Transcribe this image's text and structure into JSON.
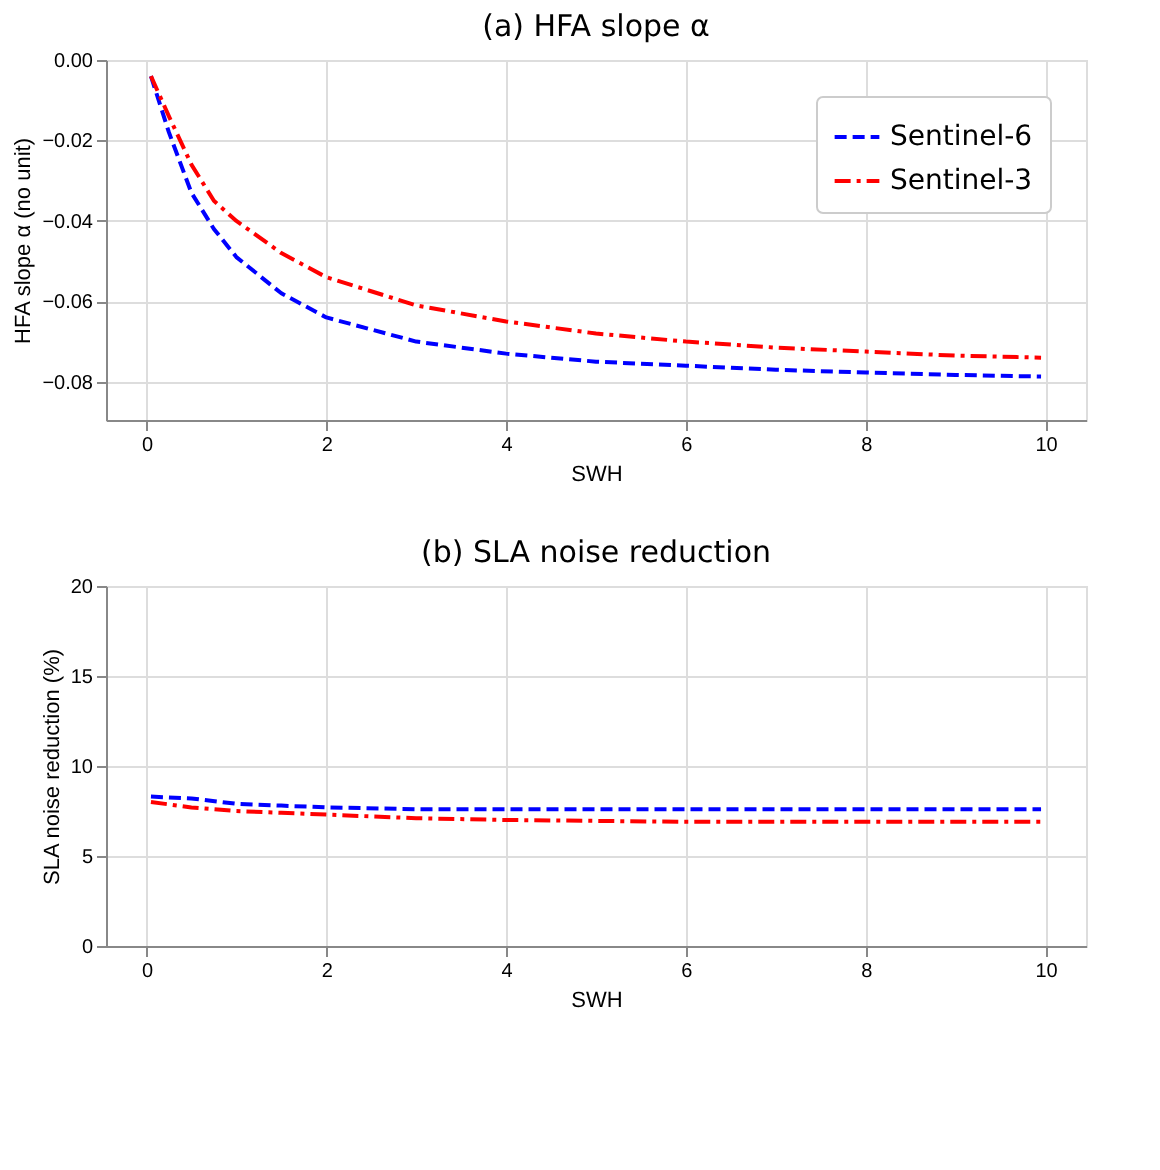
{
  "chart_data": [
    {
      "type": "line",
      "title": "(a) HFA slope α",
      "xlabel": "SWH",
      "ylabel": "HFA slope α (no unit)",
      "xlim": [
        -0.45,
        10.45
      ],
      "xticks": [
        0,
        2,
        4,
        6,
        8,
        10
      ],
      "ylim": [
        -0.0895,
        0.0
      ],
      "yticks": [
        {
          "value": -0.08,
          "label": "−0.08"
        },
        {
          "value": -0.06,
          "label": "−0.06"
        },
        {
          "value": -0.04,
          "label": "−0.04"
        },
        {
          "value": -0.02,
          "label": "−0.02"
        },
        {
          "value": 0,
          "label": "0.00"
        }
      ],
      "grid": true,
      "legend": "top right",
      "x": [
        0.05,
        0.25,
        0.5,
        0.75,
        1,
        1.5,
        2,
        3,
        4,
        5,
        6,
        7,
        8,
        9,
        9.95
      ],
      "series": [
        {
          "name": "Sentinel-6",
          "color": "#0000ff",
          "line_style": "dashed",
          "values": [
            -0.004,
            -0.018,
            -0.033,
            -0.042,
            -0.049,
            -0.058,
            -0.064,
            -0.07,
            -0.073,
            -0.075,
            -0.076,
            -0.077,
            -0.0777,
            -0.0783,
            -0.0787
          ]
        },
        {
          "name": "Sentinel-3",
          "color": "#ff0000",
          "line_style": "dashdot",
          "values": [
            -0.004,
            -0.014,
            -0.026,
            -0.035,
            -0.04,
            -0.048,
            -0.054,
            -0.061,
            -0.065,
            -0.068,
            -0.07,
            -0.0715,
            -0.0725,
            -0.0735,
            -0.074
          ]
        }
      ]
    },
    {
      "type": "line",
      "title": "(b) SLA noise reduction",
      "xlabel": "SWH",
      "ylabel": "SLA noise reduction (%)",
      "xlim": [
        -0.45,
        10.45
      ],
      "xticks": [
        0,
        2,
        4,
        6,
        8,
        10
      ],
      "ylim": [
        0,
        20
      ],
      "yticks": [
        0,
        5,
        10,
        15,
        20
      ],
      "grid": true,
      "legend": false,
      "x": [
        0.05,
        0.5,
        1,
        1.5,
        2,
        3,
        4,
        6,
        8,
        9.95
      ],
      "series": [
        {
          "color": "#0000ff",
          "line_style": "dashed",
          "values": [
            8.3,
            8.2,
            7.9,
            7.8,
            7.7,
            7.6,
            7.6,
            7.6,
            7.6,
            7.6
          ]
        },
        {
          "color": "#ff0000",
          "line_style": "dashdot",
          "values": [
            8.0,
            7.7,
            7.5,
            7.4,
            7.3,
            7.1,
            7.0,
            6.9,
            6.9,
            6.9
          ]
        }
      ]
    }
  ]
}
